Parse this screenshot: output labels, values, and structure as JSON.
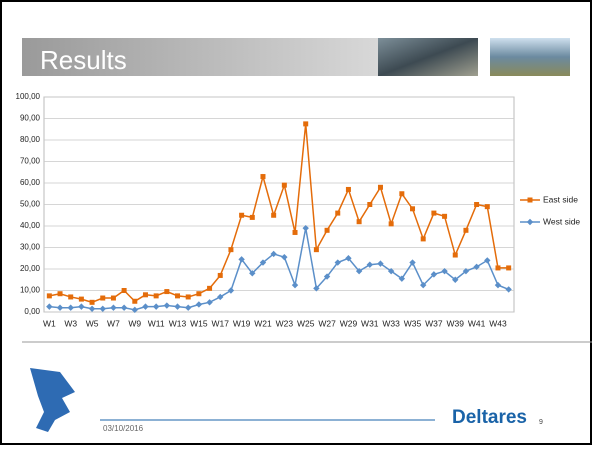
{
  "slide": {
    "title": "Results",
    "date": "03/10/2016",
    "brand": "Deltares",
    "page": "9"
  },
  "chart_data": {
    "type": "line",
    "categories": [
      "W1",
      null,
      "W3",
      null,
      "W5",
      null,
      "W7",
      null,
      "W9",
      null,
      "W11",
      null,
      "W13",
      null,
      "W15",
      null,
      "W17",
      null,
      "W19",
      null,
      "W21",
      null,
      "W23",
      null,
      "W25",
      null,
      "W27",
      null,
      "W29",
      null,
      "W31",
      null,
      "W33",
      null,
      "W35",
      null,
      "W37",
      null,
      "W39",
      null,
      "W41",
      null,
      "W43",
      null
    ],
    "series": [
      {
        "name": "East side",
        "color": "#e46c0a",
        "marker": "square",
        "values": [
          7.5,
          8.5,
          7,
          6,
          4.5,
          6.5,
          6.5,
          10,
          5,
          8,
          7.5,
          9.5,
          7.5,
          7,
          8.5,
          11,
          17,
          29,
          45,
          44,
          63,
          45,
          59,
          37,
          87.5,
          29,
          38,
          46,
          57,
          42,
          50,
          58,
          41,
          55,
          48,
          34,
          46,
          44.5,
          26.5,
          38,
          50,
          49,
          20.5,
          20.5
        ]
      },
      {
        "name": "West side",
        "color": "#5b8fc9",
        "marker": "diamond",
        "values": [
          2.5,
          2,
          2,
          2.5,
          1.5,
          1.5,
          2,
          2,
          1,
          2.5,
          2.5,
          3,
          2.5,
          2,
          3.5,
          4.5,
          7,
          10,
          24.5,
          18,
          23,
          27,
          25.5,
          12.5,
          39,
          11,
          16.5,
          23,
          25,
          19,
          22,
          22.5,
          19,
          15.5,
          23,
          12.5,
          17.5,
          19,
          15,
          19,
          21,
          24,
          12.5,
          10.5
        ]
      }
    ],
    "ylim": [
      0,
      100
    ],
    "yticks": [
      {
        "value": 0,
        "label": "0,00"
      },
      {
        "value": 10,
        "label": "10,00"
      },
      {
        "value": 20,
        "label": "20,00"
      },
      {
        "value": 30,
        "label": "30,00"
      },
      {
        "value": 40,
        "label": "40,00"
      },
      {
        "value": 50,
        "label": "50,00"
      },
      {
        "value": 60,
        "label": "60,00"
      },
      {
        "value": 70,
        "label": "70,00"
      },
      {
        "value": 80,
        "label": "80,00"
      },
      {
        "value": 90,
        "label": "90,00"
      },
      {
        "value": 100,
        "label": "100,00"
      }
    ],
    "grid": true,
    "legend": "right"
  }
}
